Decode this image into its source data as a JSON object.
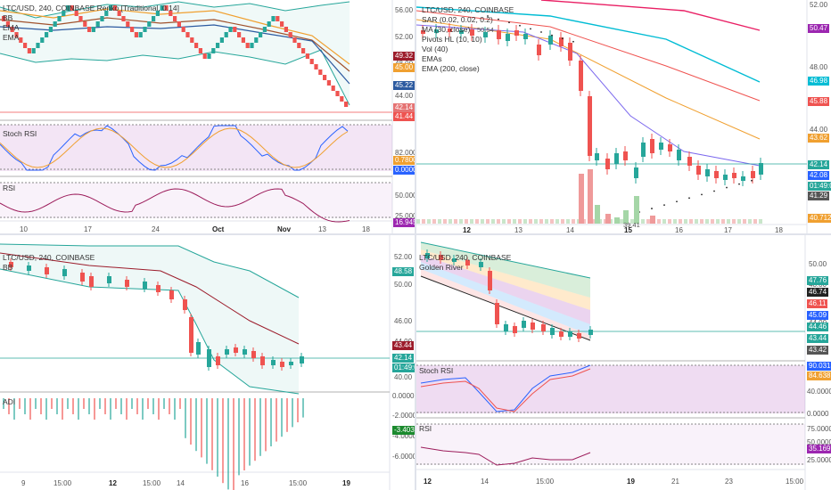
{
  "panels": {
    "tl": {
      "legend": [
        "LTC/USD, 240, COINBASE Renko [Traditional, 0.14]",
        "BB",
        "EMA",
        "EMA"
      ],
      "rsi_legend": [
        "Stoch RSI",
        "RSI"
      ],
      "price_scale": [
        "56.00",
        "52.00",
        "48.00",
        "44.00"
      ],
      "price_tags": [
        {
          "v": "49.32",
          "c": "#9c1c2b"
        },
        {
          "v": "45.00",
          "c": "#f0a030"
        },
        {
          "v": "45.22",
          "c": "#2c5aa0"
        },
        {
          "v": "42.14",
          "c": "#e57373"
        },
        {
          "v": "41.44",
          "c": "#ef5350"
        }
      ],
      "stoch_tags": [
        {
          "v": "0.7800",
          "c": "#f0a030"
        },
        {
          "v": "0.0000",
          "c": "#2962ff"
        }
      ],
      "stoch_scale": [
        "82.0000"
      ],
      "rsi_scale": [
        "50.0000",
        "25.0000"
      ],
      "rsi_tag": {
        "v": "16.9454",
        "c": "#9c27b0"
      },
      "x_labels": [
        "10",
        "17",
        "24",
        "Oct",
        "Nov",
        "13",
        "18"
      ],
      "x_bold": [
        false,
        false,
        false,
        true,
        true,
        false,
        false
      ]
    },
    "tr": {
      "legend": [
        "LTC/USD, 240, COINBASE",
        "SAR (0.02, 0.02, 0.2)",
        "MA (30, close)",
        "Pivots HL (10, 10)",
        "Vol (40)",
        "EMAs",
        "EMA (200, close)"
      ],
      "price_scale": [
        "52.00",
        "48.00",
        "44.00",
        "40.00"
      ],
      "price_tags": [
        {
          "v": "50.47",
          "c": "#9c27b0"
        },
        {
          "v": "46.98",
          "c": "#00bcd4"
        },
        {
          "v": "45.88",
          "c": "#ef5350"
        },
        {
          "v": "43.62",
          "c": "#f0a030"
        },
        {
          "v": "42.14",
          "c": "#26a69a"
        },
        {
          "v": "42.08",
          "c": "#2962ff"
        },
        {
          "v": "01:49:00",
          "c": "#26a69a"
        },
        {
          "v": "41.29",
          "c": "#555"
        },
        {
          "v": "40.712K",
          "c": "#f0a030"
        }
      ],
      "annotations": [
        "50.54",
        "39.41"
      ],
      "x_labels": [
        "12",
        "13",
        "14",
        "15",
        "16",
        "17",
        "18"
      ],
      "x_bold": [
        true,
        false,
        false,
        true,
        false,
        false,
        false
      ]
    },
    "bl": {
      "legend": [
        "LTC/USD, 240, COINBASE",
        "BB"
      ],
      "osc_legend": "ADI",
      "price_scale": [
        "52.00",
        "50.00",
        "46.00",
        "44.00",
        "40.00"
      ],
      "price_tags": [
        {
          "v": "48.58",
          "c": "#26a69a"
        },
        {
          "v": "43.44",
          "c": "#9c1c2b"
        },
        {
          "v": "42.14",
          "c": "#26a69a"
        },
        {
          "v": "01:49:00",
          "c": "#26a69a"
        }
      ],
      "osc_scale": [
        "0.0000",
        "-2.0000",
        "-4.0000",
        "-6.0000"
      ],
      "osc_tag": {
        "v": "-3.4038",
        "c": "#1b8a2e"
      },
      "x_labels": [
        "9",
        "15:00",
        "12",
        "15:00",
        "14",
        "16",
        "15:00",
        "19"
      ],
      "x_bold": [
        false,
        false,
        true,
        false,
        false,
        false,
        false,
        true
      ]
    },
    "br": {
      "legend": [
        "LTC/USD, 240, COINBASE",
        "Golden River"
      ],
      "rsi_legend": [
        "Stoch RSI",
        "RSI"
      ],
      "price_scale": [
        "50.00",
        "48.00",
        "44.00",
        "42.00"
      ],
      "price_tags": [
        {
          "v": "47.76",
          "c": "#26a69a"
        },
        {
          "v": "46.74",
          "c": "#222"
        },
        {
          "v": "46.11",
          "c": "#ef5350"
        },
        {
          "v": "45.09",
          "c": "#2962ff"
        },
        {
          "v": "44.46",
          "c": "#26a69a"
        },
        {
          "v": "43.44",
          "c": "#26a69a"
        },
        {
          "v": "43.42",
          "c": "#555"
        }
      ],
      "stoch_tags": [
        {
          "v": "90.0313",
          "c": "#2962ff"
        },
        {
          "v": "84.6387",
          "c": "#f0a030"
        }
      ],
      "stoch_scale": [
        "40.0000",
        "0.0000"
      ],
      "rsi_scale": [
        "75.0000",
        "50.0000",
        "25.0000"
      ],
      "rsi_tag": {
        "v": "35.1697",
        "c": "#9c27b0"
      },
      "x_labels": [
        "12",
        "14",
        "15:00",
        "19",
        "21",
        "23",
        "15:00"
      ],
      "x_bold": [
        true,
        false,
        false,
        true,
        false,
        false,
        false
      ]
    }
  }
}
